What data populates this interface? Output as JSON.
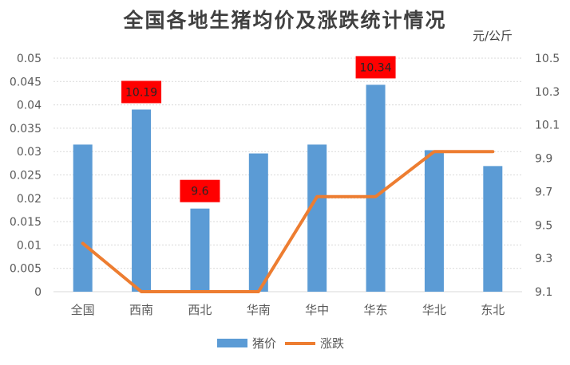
{
  "chart_data": {
    "type": "bar",
    "title": "全国各地生猪均价及涨跌统计情况",
    "unit_label": "元/公斤",
    "categories": [
      "全国",
      "西南",
      "西北",
      "华南",
      "华中",
      "华东",
      "华北",
      "东北"
    ],
    "series": [
      {
        "name": "猪价",
        "type": "bar",
        "axis": "left",
        "color": "#5B9BD5",
        "values": [
          0.0315,
          0.039,
          0.0178,
          0.0296,
          0.0315,
          0.0443,
          0.0303,
          0.0269
        ]
      },
      {
        "name": "涨跌",
        "type": "line",
        "axis": "right",
        "color": "#ED7D31",
        "values": [
          9.39,
          9.1,
          9.1,
          9.1,
          9.67,
          9.67,
          9.94,
          9.94
        ]
      }
    ],
    "left_axis": {
      "ylim": [
        0,
        0.05
      ],
      "ticks": [
        "0",
        "0.005",
        "0.01",
        "0.015",
        "0.02",
        "0.025",
        "0.03",
        "0.035",
        "0.04",
        "0.045",
        "0.05"
      ]
    },
    "right_axis": {
      "ylim": [
        9.1,
        10.5
      ],
      "ticks": [
        "9.1",
        "9.3",
        "9.5",
        "9.7",
        "9.9",
        "10.1",
        "10.3",
        "10.5"
      ]
    },
    "annotations": [
      {
        "category_index": 1,
        "text": "10.19",
        "bg": "#FF0000"
      },
      {
        "category_index": 2,
        "text": "9.6",
        "bg": "#FF0000"
      },
      {
        "category_index": 5,
        "text": "10.34",
        "bg": "#FF0000"
      }
    ],
    "grid": true,
    "legend_position": "bottom-center"
  }
}
